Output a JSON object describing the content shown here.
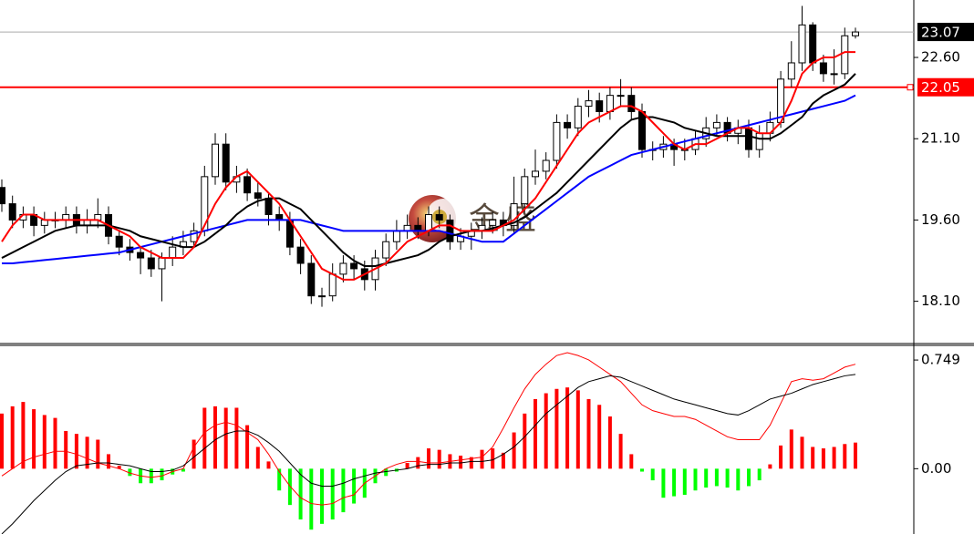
{
  "chart_data": [
    {
      "type": "candlestick",
      "categories": [
        null,
        null,
        null,
        null,
        null,
        null,
        null,
        null,
        null,
        null,
        null,
        null,
        null,
        null,
        null,
        null,
        null,
        null,
        null,
        null,
        null,
        null,
        null,
        null,
        null,
        null,
        null,
        null,
        null,
        null,
        null,
        null,
        null,
        null,
        null,
        null,
        null,
        null,
        null,
        null,
        null,
        null,
        null,
        null,
        null,
        null,
        null,
        null,
        null,
        null,
        null,
        null,
        null,
        null,
        null,
        null,
        null,
        null,
        null,
        null,
        null,
        null,
        null,
        null,
        null,
        null,
        null,
        null,
        null,
        null,
        null,
        null,
        null,
        null,
        null,
        null,
        null,
        null,
        null,
        null,
        null
      ],
      "open": [
        20.2,
        19.9,
        19.6,
        19.7,
        19.5,
        19.6,
        19.6,
        19.7,
        19.5,
        19.6,
        19.7,
        19.3,
        19.1,
        19.0,
        18.9,
        18.7,
        18.9,
        19.1,
        19.2,
        19.4,
        20.4,
        21.0,
        20.3,
        20.4,
        20.1,
        20.0,
        19.7,
        19.6,
        19.1,
        18.8,
        18.2,
        18.2,
        18.6,
        18.8,
        18.7,
        18.5,
        18.9,
        19.2,
        19.4,
        19.5,
        19.4,
        19.7,
        19.6,
        19.2,
        19.3,
        19.4,
        19.5,
        19.6,
        19.5,
        19.9,
        20.4,
        20.5,
        20.7,
        21.4,
        21.3,
        21.7,
        21.8,
        21.6,
        21.9,
        21.9,
        21.6,
        20.9,
        20.9,
        21.0,
        20.9,
        20.9,
        21.1,
        21.3,
        21.4,
        21.2,
        21.3,
        20.9,
        21.2,
        21.4,
        22.2,
        22.5,
        23.2,
        22.5,
        22.3,
        22.3,
        23.0
      ],
      "high": [
        20.35,
        20.05,
        19.85,
        19.85,
        19.75,
        19.75,
        19.85,
        19.85,
        19.8,
        20.0,
        19.85,
        19.4,
        19.25,
        19.1,
        19.05,
        19.0,
        19.3,
        19.4,
        19.55,
        20.6,
        21.2,
        21.2,
        20.6,
        20.55,
        20.3,
        20.1,
        19.85,
        19.75,
        19.25,
        18.95,
        18.35,
        18.8,
        18.95,
        18.95,
        18.85,
        19.05,
        19.35,
        19.6,
        19.7,
        19.65,
        19.85,
        19.85,
        19.7,
        19.45,
        19.55,
        19.65,
        19.75,
        19.75,
        20.4,
        20.55,
        20.9,
        20.85,
        21.55,
        21.55,
        21.85,
        22.0,
        21.95,
        22.05,
        22.2,
        22.05,
        21.75,
        21.05,
        21.15,
        21.1,
        21.1,
        21.25,
        21.5,
        21.55,
        21.5,
        21.45,
        21.45,
        21.35,
        21.6,
        22.35,
        22.9,
        23.55,
        23.25,
        22.65,
        22.75,
        23.15,
        23.15
      ],
      "low": [
        19.75,
        19.45,
        19.45,
        19.3,
        19.35,
        19.45,
        19.45,
        19.35,
        19.35,
        19.45,
        19.15,
        18.95,
        18.85,
        18.6,
        18.55,
        18.1,
        18.75,
        18.95,
        19.1,
        19.3,
        20.25,
        20.15,
        20.1,
        19.95,
        19.85,
        19.5,
        19.4,
        18.95,
        18.6,
        18.05,
        18.0,
        18.1,
        18.45,
        18.5,
        18.3,
        18.3,
        18.75,
        19.05,
        19.25,
        19.25,
        19.3,
        19.45,
        19.05,
        19.05,
        19.05,
        19.25,
        19.35,
        19.3,
        19.35,
        19.75,
        20.25,
        20.35,
        20.55,
        21.1,
        21.15,
        21.5,
        21.4,
        21.45,
        21.7,
        21.45,
        20.75,
        20.7,
        20.75,
        20.6,
        20.7,
        20.8,
        20.95,
        21.15,
        21.05,
        21.0,
        20.75,
        20.75,
        21.05,
        21.3,
        22.05,
        22.35,
        22.35,
        22.15,
        22.1,
        22.2,
        22.95
      ],
      "close": [
        19.9,
        19.6,
        19.7,
        19.5,
        19.6,
        19.6,
        19.7,
        19.5,
        19.6,
        19.7,
        19.3,
        19.1,
        19.0,
        18.9,
        18.7,
        18.9,
        19.1,
        19.2,
        19.4,
        20.4,
        21.0,
        20.3,
        20.4,
        20.1,
        20.0,
        19.7,
        19.6,
        19.1,
        18.8,
        18.2,
        18.2,
        18.6,
        18.8,
        18.7,
        18.5,
        18.9,
        19.2,
        19.4,
        19.5,
        19.4,
        19.7,
        19.6,
        19.2,
        19.3,
        19.4,
        19.5,
        19.6,
        19.5,
        19.9,
        20.4,
        20.5,
        20.7,
        21.4,
        21.3,
        21.7,
        21.8,
        21.6,
        21.9,
        21.9,
        21.6,
        20.9,
        20.9,
        21.0,
        20.9,
        20.9,
        21.1,
        21.3,
        21.4,
        21.2,
        21.3,
        20.9,
        21.2,
        21.4,
        22.2,
        22.5,
        23.2,
        22.5,
        22.3,
        22.3,
        23.0,
        23.07
      ],
      "series": [
        {
          "color": "#0000ff",
          "values": [
            18.8,
            18.8,
            18.82,
            18.84,
            18.86,
            18.88,
            18.9,
            18.92,
            18.94,
            18.96,
            18.98,
            19.0,
            19.05,
            19.1,
            19.15,
            19.2,
            19.25,
            19.3,
            19.35,
            19.4,
            19.45,
            19.5,
            19.55,
            19.6,
            19.6,
            19.6,
            19.6,
            19.6,
            19.6,
            19.55,
            19.5,
            19.45,
            19.4,
            19.4,
            19.4,
            19.4,
            19.4,
            19.4,
            19.4,
            19.4,
            19.4,
            19.4,
            19.35,
            19.3,
            19.25,
            19.2,
            19.2,
            19.2,
            19.35,
            19.5,
            19.65,
            19.8,
            19.95,
            20.1,
            20.25,
            20.4,
            20.5,
            20.6,
            20.7,
            20.8,
            20.85,
            20.9,
            20.95,
            21.0,
            21.05,
            21.1,
            21.15,
            21.2,
            21.25,
            21.3,
            21.35,
            21.4,
            21.45,
            21.5,
            21.55,
            21.6,
            21.65,
            21.7,
            21.75,
            21.8,
            21.9
          ]
        },
        {
          "color": "#000000",
          "values": [
            18.9,
            19.0,
            19.1,
            19.2,
            19.3,
            19.4,
            19.45,
            19.5,
            19.5,
            19.5,
            19.5,
            19.45,
            19.4,
            19.3,
            19.25,
            19.2,
            19.15,
            19.1,
            19.1,
            19.2,
            19.35,
            19.5,
            19.7,
            19.85,
            19.95,
            20.0,
            20.0,
            19.9,
            19.8,
            19.6,
            19.4,
            19.2,
            19.0,
            18.85,
            18.75,
            18.75,
            18.8,
            18.85,
            18.9,
            18.95,
            19.05,
            19.2,
            19.3,
            19.35,
            19.4,
            19.4,
            19.45,
            19.5,
            19.55,
            19.65,
            19.8,
            19.95,
            20.1,
            20.3,
            20.5,
            20.7,
            20.9,
            21.1,
            21.3,
            21.45,
            21.5,
            21.5,
            21.45,
            21.4,
            21.3,
            21.25,
            21.2,
            21.15,
            21.15,
            21.15,
            21.15,
            21.1,
            21.1,
            21.2,
            21.35,
            21.5,
            21.75,
            21.9,
            22.0,
            22.1,
            22.3
          ]
        },
        {
          "color": "#ff0000",
          "values": [
            19.2,
            19.5,
            19.7,
            19.7,
            19.6,
            19.6,
            19.6,
            19.6,
            19.6,
            19.6,
            19.5,
            19.4,
            19.3,
            19.1,
            19.0,
            18.9,
            18.9,
            18.9,
            19.1,
            19.5,
            19.9,
            20.2,
            20.4,
            20.5,
            20.3,
            20.1,
            19.9,
            19.6,
            19.3,
            19.0,
            18.7,
            18.6,
            18.5,
            18.5,
            18.6,
            18.7,
            18.8,
            19.0,
            19.2,
            19.3,
            19.4,
            19.5,
            19.5,
            19.4,
            19.4,
            19.4,
            19.4,
            19.5,
            19.6,
            19.8,
            20.0,
            20.3,
            20.6,
            20.9,
            21.2,
            21.4,
            21.5,
            21.6,
            21.7,
            21.7,
            21.6,
            21.4,
            21.2,
            21.0,
            20.9,
            21.0,
            21.0,
            21.1,
            21.2,
            21.3,
            21.3,
            21.2,
            21.2,
            21.4,
            21.8,
            22.3,
            22.5,
            22.6,
            22.6,
            22.7,
            22.7
          ]
        }
      ],
      "ylim": [
        17.32,
        23.66
      ],
      "yticks": [
        {
          "value": 18.1,
          "label": "18.10"
        },
        {
          "value": 19.6,
          "label": "19.60"
        },
        {
          "value": 21.1,
          "label": "21.10"
        },
        {
          "value": 22.6,
          "label": "22.60"
        }
      ],
      "hline": 22.05,
      "hline_color": "#ff0000",
      "last_price": 23.07,
      "watermark": "金盛"
    },
    {
      "type": "macd",
      "histogram": {
        "up_color": "#ff0000",
        "down_color": "#00ff00",
        "values": [
          0.38,
          0.43,
          0.46,
          0.41,
          0.37,
          0.35,
          0.26,
          0.24,
          0.22,
          0.2,
          0.1,
          0.02,
          -0.05,
          -0.1,
          -0.1,
          -0.08,
          -0.04,
          -0.02,
          0.2,
          0.42,
          0.43,
          0.42,
          0.42,
          0.3,
          0.15,
          0.05,
          -0.15,
          -0.25,
          -0.35,
          -0.42,
          -0.38,
          -0.35,
          -0.3,
          -0.24,
          -0.2,
          -0.1,
          -0.05,
          -0.02,
          0.04,
          0.08,
          0.14,
          0.13,
          0.1,
          0.09,
          0.08,
          0.13,
          0.14,
          0.11,
          0.25,
          0.38,
          0.48,
          0.52,
          0.55,
          0.56,
          0.54,
          0.48,
          0.44,
          0.36,
          0.24,
          0.1,
          -0.02,
          -0.08,
          -0.2,
          -0.19,
          -0.18,
          -0.15,
          -0.13,
          -0.12,
          -0.13,
          -0.15,
          -0.12,
          -0.08,
          0.03,
          0.16,
          0.27,
          0.22,
          0.15,
          0.14,
          0.15,
          0.17,
          0.18
        ]
      },
      "series": [
        {
          "color": "#ff0000",
          "values": [
            -0.05,
            0.0,
            0.05,
            0.08,
            0.1,
            0.12,
            0.12,
            0.1,
            0.07,
            0.04,
            0.02,
            0.0,
            -0.03,
            -0.05,
            -0.06,
            -0.05,
            -0.02,
            0.0,
            0.15,
            0.25,
            0.3,
            0.32,
            0.3,
            0.25,
            0.2,
            0.1,
            -0.02,
            -0.12,
            -0.2,
            -0.24,
            -0.25,
            -0.24,
            -0.2,
            -0.18,
            -0.1,
            -0.05,
            0.0,
            0.03,
            0.05,
            0.05,
            0.04,
            0.04,
            0.05,
            0.06,
            0.07,
            0.08,
            0.15,
            0.28,
            0.42,
            0.55,
            0.65,
            0.72,
            0.78,
            0.8,
            0.78,
            0.75,
            0.7,
            0.65,
            0.6,
            0.52,
            0.44,
            0.4,
            0.38,
            0.36,
            0.36,
            0.34,
            0.3,
            0.26,
            0.22,
            0.2,
            0.2,
            0.2,
            0.3,
            0.45,
            0.6,
            0.62,
            0.61,
            0.62,
            0.66,
            0.7,
            0.72
          ]
        },
        {
          "color": "#000000",
          "values": [
            -0.45,
            -0.38,
            -0.3,
            -0.22,
            -0.15,
            -0.08,
            -0.02,
            0.02,
            0.03,
            0.04,
            0.04,
            0.03,
            0.02,
            0.0,
            -0.02,
            -0.02,
            -0.01,
            0.02,
            0.08,
            0.14,
            0.2,
            0.24,
            0.26,
            0.26,
            0.23,
            0.18,
            0.12,
            0.04,
            -0.04,
            -0.1,
            -0.12,
            -0.12,
            -0.1,
            -0.07,
            -0.05,
            -0.03,
            -0.02,
            -0.01,
            0.0,
            0.02,
            0.03,
            0.03,
            0.04,
            0.04,
            0.05,
            0.05,
            0.06,
            0.1,
            0.15,
            0.22,
            0.3,
            0.38,
            0.44,
            0.5,
            0.56,
            0.6,
            0.62,
            0.64,
            0.63,
            0.6,
            0.57,
            0.54,
            0.51,
            0.48,
            0.46,
            0.44,
            0.42,
            0.4,
            0.38,
            0.37,
            0.4,
            0.44,
            0.48,
            0.5,
            0.52,
            0.55,
            0.58,
            0.6,
            0.62,
            0.64,
            0.65
          ]
        }
      ],
      "ylim": [
        -0.45,
        0.85
      ],
      "yticks": [
        0.749,
        {
          "value": 0,
          "label": "0.00"
        }
      ]
    }
  ]
}
